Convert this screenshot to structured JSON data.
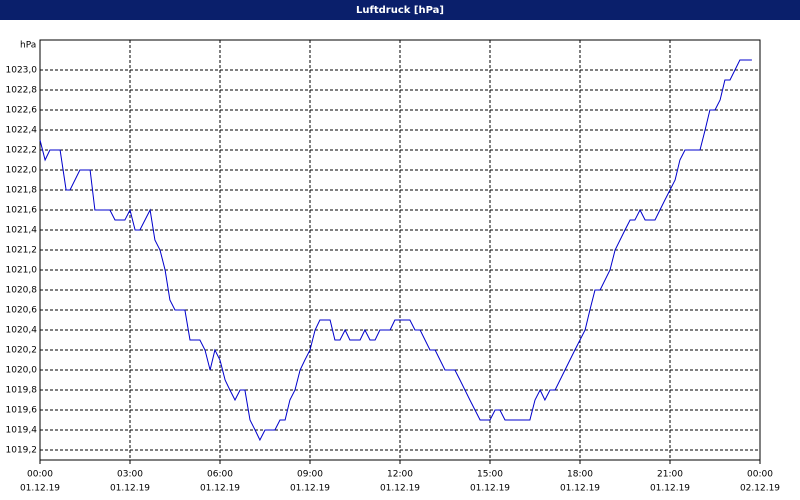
{
  "chart_data": {
    "type": "line",
    "title": "Luftdruck [hPa]",
    "y_label": "hPa",
    "xlim": [
      0,
      24
    ],
    "ylim": [
      1019.1,
      1023.3
    ],
    "grid": true,
    "xticks": [
      {
        "value": 0,
        "label": [
          "00:00",
          "01.12.19"
        ]
      },
      {
        "value": 3,
        "label": [
          "03:00",
          "01.12.19"
        ]
      },
      {
        "value": 6,
        "label": [
          "06:00",
          "01.12.19"
        ]
      },
      {
        "value": 9,
        "label": [
          "09:00",
          "01.12.19"
        ]
      },
      {
        "value": 12,
        "label": [
          "12:00",
          "01.12.19"
        ]
      },
      {
        "value": 15,
        "label": [
          "15:00",
          "01.12.19"
        ]
      },
      {
        "value": 18,
        "label": [
          "18:00",
          "01.12.19"
        ]
      },
      {
        "value": 21,
        "label": [
          "21:00",
          "01.12.19"
        ]
      },
      {
        "value": 24,
        "label": [
          "00:00",
          "02.12.19"
        ]
      }
    ],
    "yticks": [
      {
        "value": 1019.2,
        "label": "1019,2"
      },
      {
        "value": 1019.4,
        "label": "1019,4"
      },
      {
        "value": 1019.6,
        "label": "1019,6"
      },
      {
        "value": 1019.8,
        "label": "1019,8"
      },
      {
        "value": 1020.0,
        "label": "1020,0"
      },
      {
        "value": 1020.2,
        "label": "1020,2"
      },
      {
        "value": 1020.4,
        "label": "1020,4"
      },
      {
        "value": 1020.6,
        "label": "1020,6"
      },
      {
        "value": 1020.8,
        "label": "1020,8"
      },
      {
        "value": 1021.0,
        "label": "1021,0"
      },
      {
        "value": 1021.2,
        "label": "1021,2"
      },
      {
        "value": 1021.4,
        "label": "1021,4"
      },
      {
        "value": 1021.6,
        "label": "1021,6"
      },
      {
        "value": 1021.8,
        "label": "1021,8"
      },
      {
        "value": 1022.0,
        "label": "1022,0"
      },
      {
        "value": 1022.2,
        "label": "1022,2"
      },
      {
        "value": 1022.4,
        "label": "1022,4"
      },
      {
        "value": 1022.6,
        "label": "1022,6"
      },
      {
        "value": 1022.8,
        "label": "1022,8"
      },
      {
        "value": 1023.0,
        "label": "1023,0"
      }
    ],
    "series": [
      {
        "color": "#0000cc",
        "x": [
          0,
          0.17,
          0.33,
          0.67,
          0.87,
          1,
          1.33,
          1.67,
          1.83,
          2.33,
          2.5,
          2.83,
          3,
          3.17,
          3.33,
          3.67,
          3.83,
          4,
          4.17,
          4.33,
          4.5,
          4.83,
          5,
          5.33,
          5.5,
          5.67,
          5.83,
          6,
          6.17,
          6.33,
          6.5,
          6.67,
          6.83,
          7,
          7.17,
          7.33,
          7.5,
          7.83,
          8,
          8.17,
          8.33,
          8.5,
          8.67,
          8.83,
          9,
          9.17,
          9.33,
          9.67,
          9.83,
          10,
          10.17,
          10.33,
          10.67,
          10.83,
          11,
          11.17,
          11.33,
          11.67,
          11.83,
          12.33,
          12.5,
          12.67,
          13,
          13.17,
          13.5,
          13.83,
          14,
          14.33,
          14.67,
          15,
          15.17,
          15.33,
          15.5,
          16.33,
          16.5,
          16.67,
          16.83,
          17,
          17.17,
          17.5,
          17.83,
          18.17,
          18.33,
          18.5,
          18.67,
          19,
          19.17,
          19.5,
          19.67,
          19.83,
          20,
          20.17,
          20.5,
          20.83,
          21.17,
          21.33,
          21.5,
          22,
          22.17,
          22.33,
          22.5,
          22.67,
          22.83,
          23,
          23.33,
          23.73
        ],
        "values": [
          1022.3,
          1022.1,
          1022.2,
          1022.2,
          1021.8,
          1021.8,
          1022.0,
          1022.0,
          1021.6,
          1021.6,
          1021.5,
          1021.5,
          1021.6,
          1021.4,
          1021.4,
          1021.6,
          1021.3,
          1021.2,
          1021.0,
          1020.7,
          1020.6,
          1020.6,
          1020.3,
          1020.3,
          1020.2,
          1020.0,
          1020.2,
          1020.1,
          1019.9,
          1019.8,
          1019.7,
          1019.8,
          1019.8,
          1019.5,
          1019.4,
          1019.3,
          1019.4,
          1019.4,
          1019.5,
          1019.5,
          1019.7,
          1019.8,
          1020.0,
          1020.1,
          1020.2,
          1020.4,
          1020.5,
          1020.5,
          1020.3,
          1020.3,
          1020.4,
          1020.3,
          1020.3,
          1020.4,
          1020.3,
          1020.3,
          1020.4,
          1020.4,
          1020.5,
          1020.5,
          1020.4,
          1020.4,
          1020.2,
          1020.2,
          1020.0,
          1020.0,
          1019.9,
          1019.7,
          1019.5,
          1019.5,
          1019.6,
          1019.6,
          1019.5,
          1019.5,
          1019.7,
          1019.8,
          1019.7,
          1019.8,
          1019.8,
          1020.0,
          1020.2,
          1020.4,
          1020.6,
          1020.8,
          1020.8,
          1021.0,
          1021.2,
          1021.4,
          1021.5,
          1021.5,
          1021.6,
          1021.5,
          1021.5,
          1021.7,
          1021.9,
          1022.1,
          1022.2,
          1022.2,
          1022.4,
          1022.6,
          1022.6,
          1022.7,
          1022.9,
          1022.9,
          1023.1,
          1023.1
        ]
      }
    ]
  }
}
